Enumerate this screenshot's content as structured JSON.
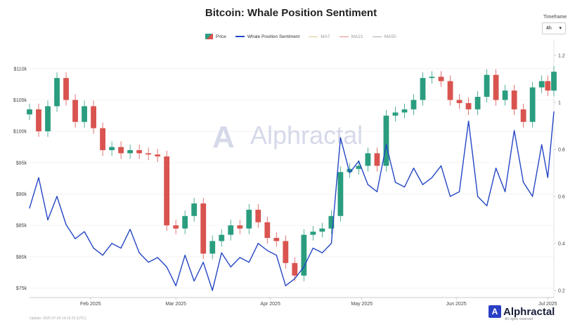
{
  "title": "Bitcoin: Whale Position Sentiment",
  "timeframe": {
    "label": "Timeframe",
    "selected": "4h"
  },
  "legend": [
    {
      "label": "Price",
      "kind": "price",
      "muted": false
    },
    {
      "label": "Whale Position Sentiment",
      "kind": "line",
      "muted": false
    },
    {
      "label": "MA7",
      "kind": "ma7",
      "muted": true
    },
    {
      "label": "MA21",
      "kind": "ma21",
      "muted": true
    },
    {
      "label": "MA50",
      "kind": "ma50",
      "muted": true
    }
  ],
  "watermark": "Alphractal",
  "corner_logo": {
    "mark": "A",
    "text": "Alphractal",
    "sub": "All rights reserved"
  },
  "footer": "Update: 2025-07-03 14:15:23 (UTC)",
  "colors": {
    "up": "#2a9d7f",
    "down": "#d9534f",
    "sentiment": "#2446c4",
    "grid": "#eeeeee"
  },
  "chart_data": {
    "type": "line",
    "title": "Bitcoin: Whale Position Sentiment",
    "x_ticks": [
      "Feb 2025",
      "Mar 2025",
      "Apr 2025",
      "May 2025",
      "Jun 2025",
      "Jul 2025"
    ],
    "x_range": [
      "2025-01-12",
      "2025-07-03"
    ],
    "y_left": {
      "ticks": [
        "$75k",
        "$80k",
        "$85k",
        "$90k",
        "$95k",
        "$100k",
        "$105k",
        "$110k"
      ],
      "range": [
        73500,
        114000
      ]
    },
    "y_right": {
      "ticks": [
        "0.2",
        "0.4",
        "0.6",
        "0.8",
        "1",
        "1.2"
      ],
      "range": [
        0.17,
        1.25
      ]
    },
    "grid": true,
    "legend_position": "top-center",
    "series": [
      {
        "name": "Price",
        "kind": "candlestick",
        "x": [
          "2025-01-12",
          "2025-01-15",
          "2025-01-18",
          "2025-01-21",
          "2025-01-24",
          "2025-01-27",
          "2025-01-30",
          "2025-02-02",
          "2025-02-05",
          "2025-02-08",
          "2025-02-11",
          "2025-02-14",
          "2025-02-17",
          "2025-02-20",
          "2025-02-23",
          "2025-02-26",
          "2025-03-01",
          "2025-03-04",
          "2025-03-07",
          "2025-03-10",
          "2025-03-13",
          "2025-03-16",
          "2025-03-19",
          "2025-03-22",
          "2025-03-25",
          "2025-03-28",
          "2025-03-31",
          "2025-04-03",
          "2025-04-06",
          "2025-04-09",
          "2025-04-12",
          "2025-04-15",
          "2025-04-18",
          "2025-04-21",
          "2025-04-24",
          "2025-04-27",
          "2025-04-30",
          "2025-05-03",
          "2025-05-06",
          "2025-05-09",
          "2025-05-12",
          "2025-05-15",
          "2025-05-18",
          "2025-05-21",
          "2025-05-24",
          "2025-05-27",
          "2025-05-30",
          "2025-06-02",
          "2025-06-05",
          "2025-06-08",
          "2025-06-11",
          "2025-06-14",
          "2025-06-17",
          "2025-06-20",
          "2025-06-23",
          "2025-06-26",
          "2025-06-29",
          "2025-07-01",
          "2025-07-03"
        ],
        "values": [
          103500,
          100000,
          104000,
          108500,
          105000,
          101500,
          104000,
          100500,
          97000,
          97500,
          96500,
          97000,
          96500,
          96300,
          96000,
          85000,
          84500,
          86500,
          88500,
          80500,
          82500,
          83500,
          85000,
          84500,
          87500,
          85500,
          83000,
          82500,
          79000,
          77000,
          83500,
          84000,
          84500,
          86500,
          93500,
          94000,
          94500,
          96500,
          94500,
          102500,
          103000,
          103500,
          105000,
          108500,
          108700,
          108000,
          105000,
          104500,
          103500,
          105500,
          109000,
          105000,
          106500,
          103500,
          101500,
          107000,
          108000,
          106500,
          109500
        ]
      },
      {
        "name": "Whale Position Sentiment",
        "kind": "line",
        "x": [
          "2025-01-12",
          "2025-01-15",
          "2025-01-18",
          "2025-01-21",
          "2025-01-24",
          "2025-01-27",
          "2025-01-30",
          "2025-02-02",
          "2025-02-05",
          "2025-02-08",
          "2025-02-11",
          "2025-02-14",
          "2025-02-17",
          "2025-02-20",
          "2025-02-23",
          "2025-02-26",
          "2025-03-01",
          "2025-03-04",
          "2025-03-07",
          "2025-03-10",
          "2025-03-13",
          "2025-03-16",
          "2025-03-19",
          "2025-03-22",
          "2025-03-25",
          "2025-03-28",
          "2025-03-31",
          "2025-04-03",
          "2025-04-06",
          "2025-04-09",
          "2025-04-12",
          "2025-04-15",
          "2025-04-18",
          "2025-04-21",
          "2025-04-24",
          "2025-04-27",
          "2025-04-30",
          "2025-05-03",
          "2025-05-06",
          "2025-05-09",
          "2025-05-12",
          "2025-05-15",
          "2025-05-18",
          "2025-05-21",
          "2025-05-24",
          "2025-05-27",
          "2025-05-30",
          "2025-06-02",
          "2025-06-05",
          "2025-06-08",
          "2025-06-11",
          "2025-06-14",
          "2025-06-17",
          "2025-06-20",
          "2025-06-23",
          "2025-06-26",
          "2025-06-29",
          "2025-07-01",
          "2025-07-03"
        ],
        "values": [
          0.55,
          0.68,
          0.5,
          0.6,
          0.48,
          0.42,
          0.45,
          0.38,
          0.35,
          0.4,
          0.38,
          0.46,
          0.36,
          0.32,
          0.34,
          0.3,
          0.22,
          0.35,
          0.24,
          0.32,
          0.2,
          0.36,
          0.3,
          0.34,
          0.32,
          0.4,
          0.37,
          0.35,
          0.22,
          0.25,
          0.3,
          0.38,
          0.36,
          0.4,
          0.85,
          0.7,
          0.75,
          0.65,
          0.62,
          0.82,
          0.66,
          0.64,
          0.72,
          0.65,
          0.68,
          0.73,
          0.6,
          0.62,
          0.92,
          0.6,
          0.56,
          0.72,
          0.62,
          0.88,
          0.66,
          0.6,
          0.82,
          0.68,
          0.96
        ]
      }
    ]
  }
}
